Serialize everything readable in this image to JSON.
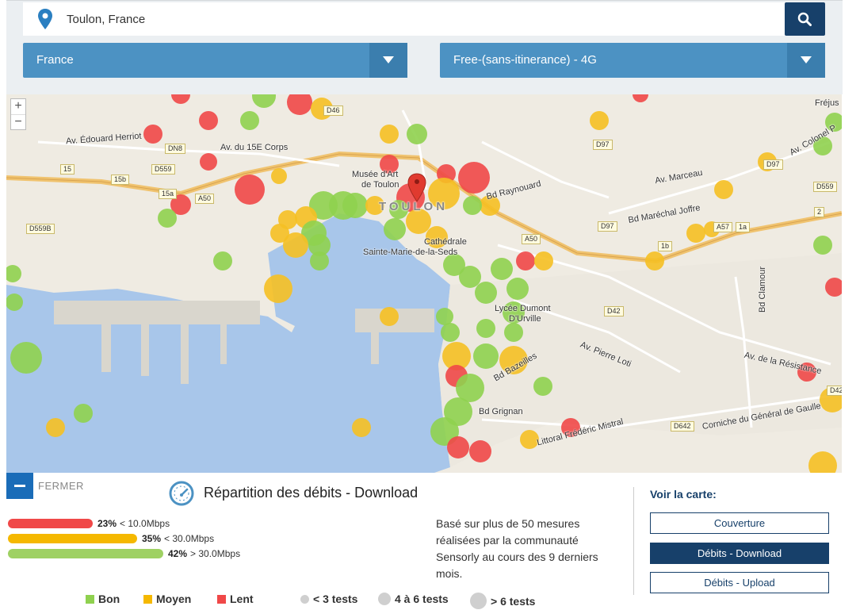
{
  "search": {
    "value": "Toulon, France",
    "pin_icon": "map-pin-icon",
    "button_icon": "search-icon"
  },
  "selects": {
    "country": "France",
    "operator": "Free-(sans-itinerance) - 4G"
  },
  "map": {
    "zoom_in": "+",
    "zoom_out": "−",
    "labels": {
      "city": "TOULON",
      "musee1": "Musée d'Art",
      "musee2": "de Toulon",
      "cathedrale1": "Cathédrale",
      "cathedrale2": "Sainte-Marie-de-la-Seds",
      "lycee1": "Lycée Dumont",
      "lycee2": "D'Urville",
      "av_herriot": "Av. Édouard Herriot",
      "av_15e": "Av. du 15E Corps",
      "bd_raynouard": "Bd Raynouard",
      "av_marceau": "Av. Marceau",
      "bd_joffre": "Bd Maréchal Joffre",
      "av_colonel": "Av. Colonel P",
      "av_pierre_loti": "Av. Pierre Loti",
      "av_resistance": "Av. de la Résistance",
      "bd_bazeilles": "Bd Bazeilles",
      "bd_grignan": "Bd Grignan",
      "littoral": "Littoral Frédéric Mistral",
      "corniche": "Corniche du Général de Gaulle",
      "bd_clamour": "Bd Clamour",
      "frejus": "Fréjus"
    },
    "roads": {
      "d46": "D46",
      "dn8": "DN8",
      "d559": "D559",
      "a50": "A50",
      "r15": "15",
      "r15b": "15b",
      "r15a": "15a",
      "d559b": "D559B",
      "d97a": "D97",
      "d97b": "D97",
      "d97c": "D97",
      "a50b": "A50",
      "a57": "A57",
      "r1b": "1b",
      "r1a": "1a",
      "r2": "2",
      "d559c": "D559",
      "d42": "D42",
      "d642": "D642",
      "d42b": "D42"
    }
  },
  "panel": {
    "fermer": "FERMER",
    "title": "Répartition des débits - Download",
    "gauge_icon": "speedometer-icon",
    "bars": [
      {
        "pct": "23%",
        "threshold": "< 10.0Mbps",
        "fill": 0.23,
        "color": "#f04848"
      },
      {
        "pct": "35%",
        "threshold": "< 30.0Mbps",
        "fill": 0.35,
        "color": "#f5b800"
      },
      {
        "pct": "42%",
        "threshold": "> 30.0Mbps",
        "fill": 0.42,
        "color": "#9fd163"
      }
    ],
    "description": "Basé sur plus de 50 mesures réalisées par la communauté Sensorly au cours des 9 derniers mois.",
    "voir_title": "Voir la carte:",
    "buttons": [
      "Couverture",
      "Débits - Download",
      "Débits - Upload"
    ],
    "active_button": 1
  },
  "legend": {
    "bon": "Bon",
    "moyen": "Moyen",
    "lent": "Lent",
    "tests1": "< 3 tests",
    "tests2": "4 à 6 tests",
    "tests3": "> 6 tests",
    "colors": {
      "bon": "#8fd14f",
      "moyen": "#f5b800",
      "lent": "#f04848"
    }
  }
}
